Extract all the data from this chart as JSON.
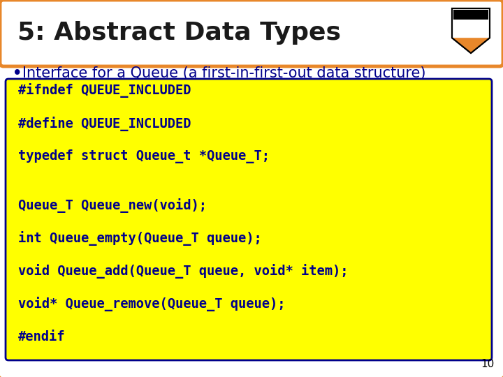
{
  "title": "5: Abstract Data Types",
  "title_color": "#1a1a1a",
  "title_fontsize": 26,
  "slide_bg": "#FFFFFF",
  "outer_border_color": "#E8872A",
  "header_bg": "#FFFFFF",
  "bullet_text": "Interface for a Queue (a first-in-first-out data structure)",
  "bullet_color": "#00008B",
  "bullet_fontsize": 15,
  "code_lines": [
    "#ifndef QUEUE_INCLUDED",
    "",
    "#define QUEUE_INCLUDED",
    "",
    "typedef struct Queue_t *Queue_T;",
    "",
    "",
    "Queue_T Queue_new(void);",
    "",
    "int Queue_empty(Queue_T queue);",
    "",
    "void Queue_add(Queue_T queue, void* item);",
    "",
    "void* Queue_remove(Queue_T queue);",
    "",
    "#endif"
  ],
  "code_color": "#00008B",
  "code_bg": "#FFFF00",
  "code_border_color": "#00008B",
  "code_fontsize": 13.5,
  "page_number": "10",
  "page_num_color": "#000000",
  "page_num_fontsize": 11,
  "shield_bg": "#FFFFFF",
  "shield_orange": "#E8872A",
  "shield_black": "#000000"
}
